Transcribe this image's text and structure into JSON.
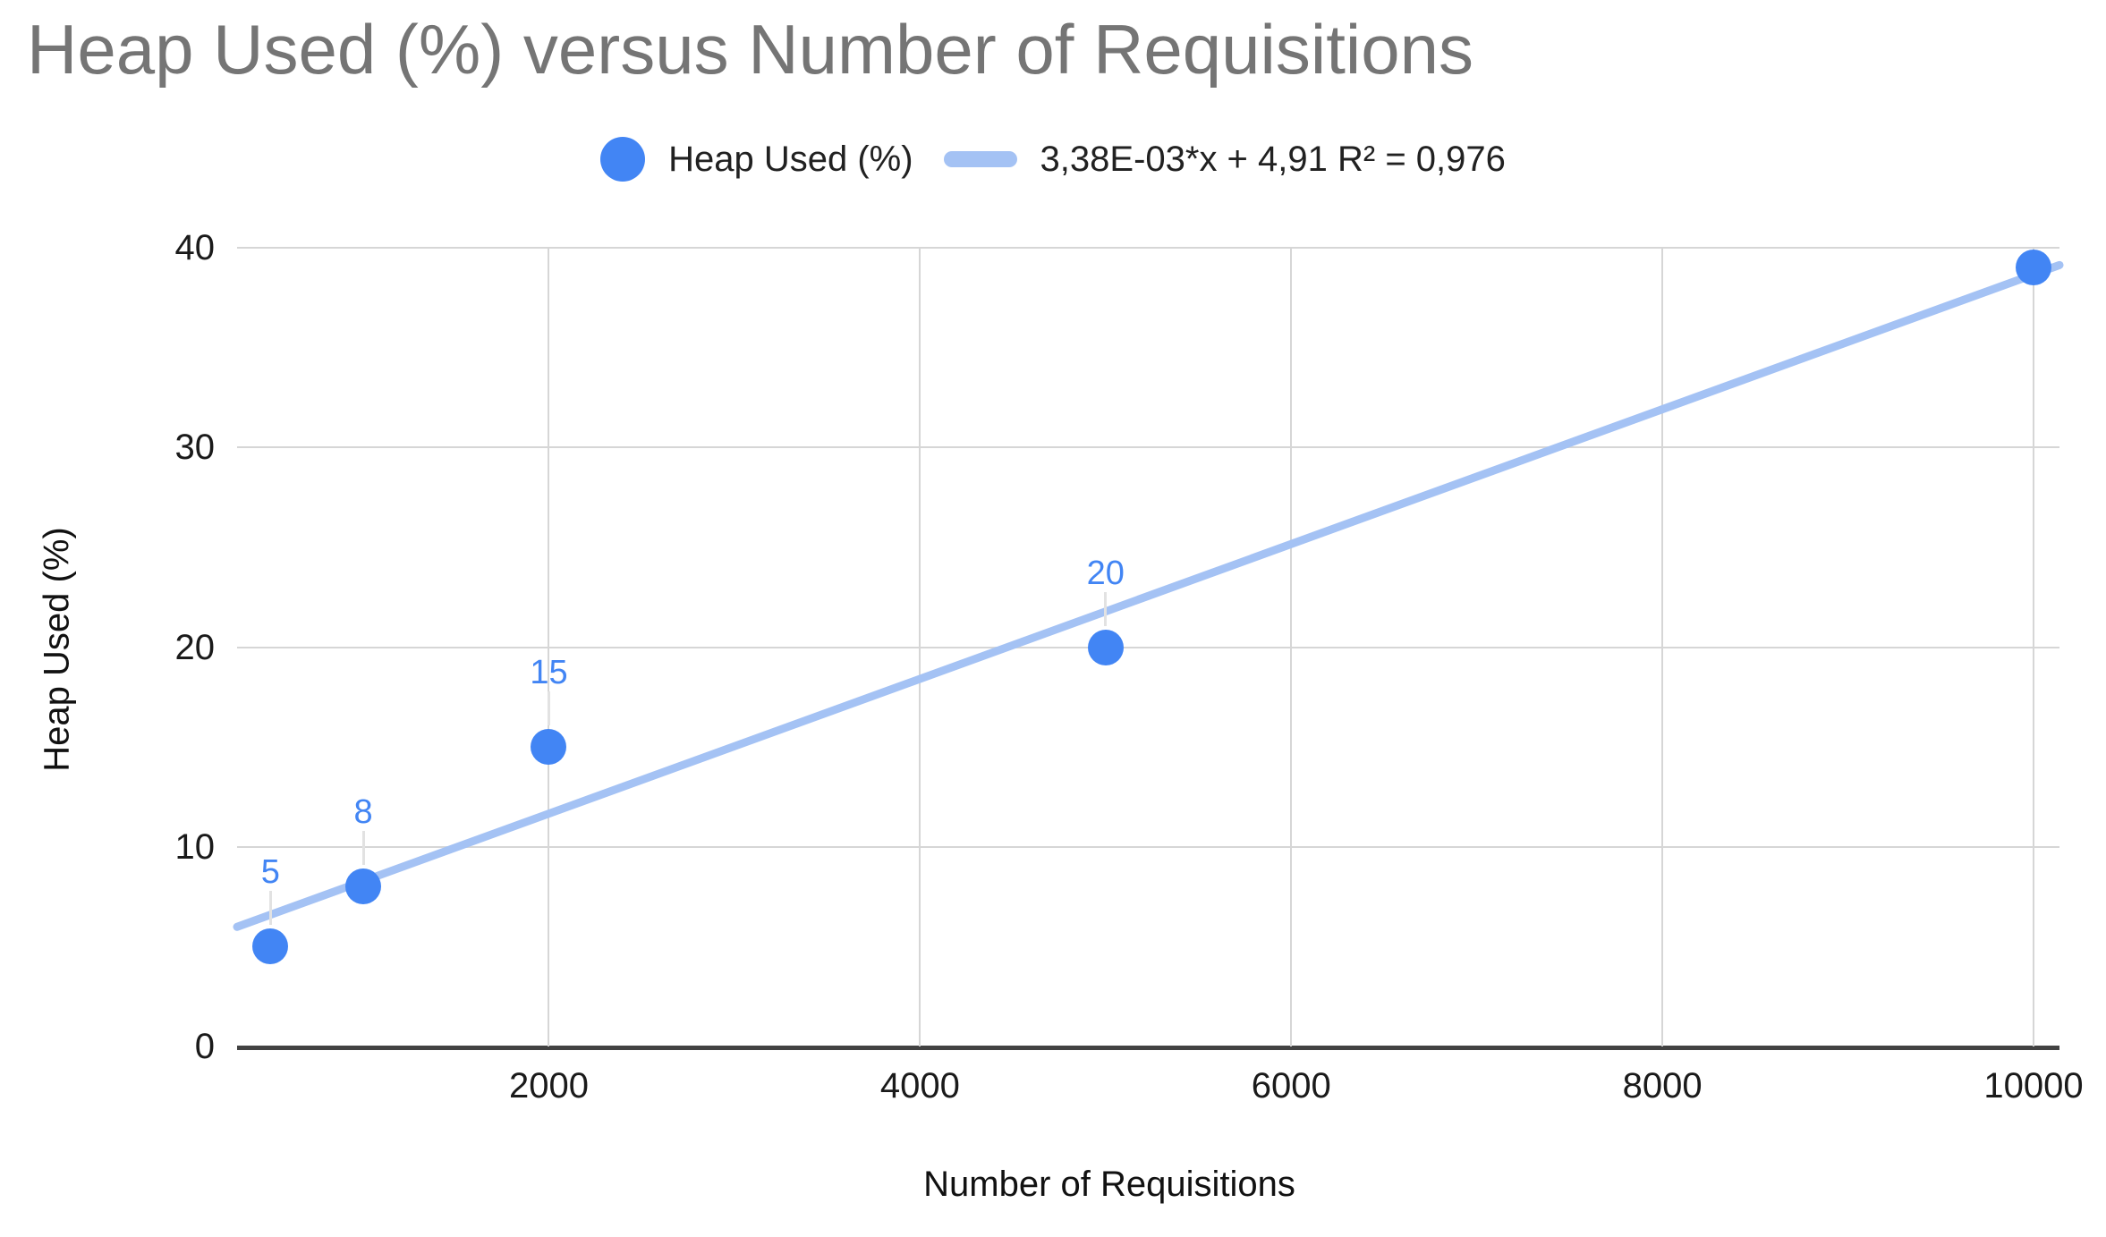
{
  "chart_data": {
    "type": "scatter",
    "title": "Heap Used (%) versus Number of Requisitions",
    "xlabel": "Number of Requisitions",
    "ylabel": "Heap Used (%)",
    "legend_position": "top",
    "grid": true,
    "x_axis_range": [
      320,
      10140
    ],
    "y_axis_range": [
      0,
      40
    ],
    "x_ticks": [
      2000,
      4000,
      6000,
      8000,
      10000
    ],
    "y_ticks": [
      0,
      10,
      20,
      30,
      40
    ],
    "series": [
      {
        "name": "Heap Used (%)",
        "color": "#4285f4",
        "points": [
          {
            "x": 500,
            "y": 5,
            "label": "5"
          },
          {
            "x": 1000,
            "y": 8,
            "label": "8"
          },
          {
            "x": 2000,
            "y": 15,
            "label": "15"
          },
          {
            "x": 5000,
            "y": 20,
            "label": "20"
          },
          {
            "x": 10000,
            "y": 39,
            "label": null
          }
        ]
      }
    ],
    "trendline": {
      "label": "3,38E-03*x + 4,91 R² = 0,976",
      "slope": 0.003375,
      "intercept": 4.91,
      "r_squared": 0.976,
      "color": "#a4c2f4"
    },
    "colors": {
      "series_blue": "#4285f4",
      "trendline_blue": "#a4c2f4",
      "title_gray": "#757575",
      "gridline_gray": "#d6d6d6",
      "axis_baseline": "#424242"
    }
  }
}
